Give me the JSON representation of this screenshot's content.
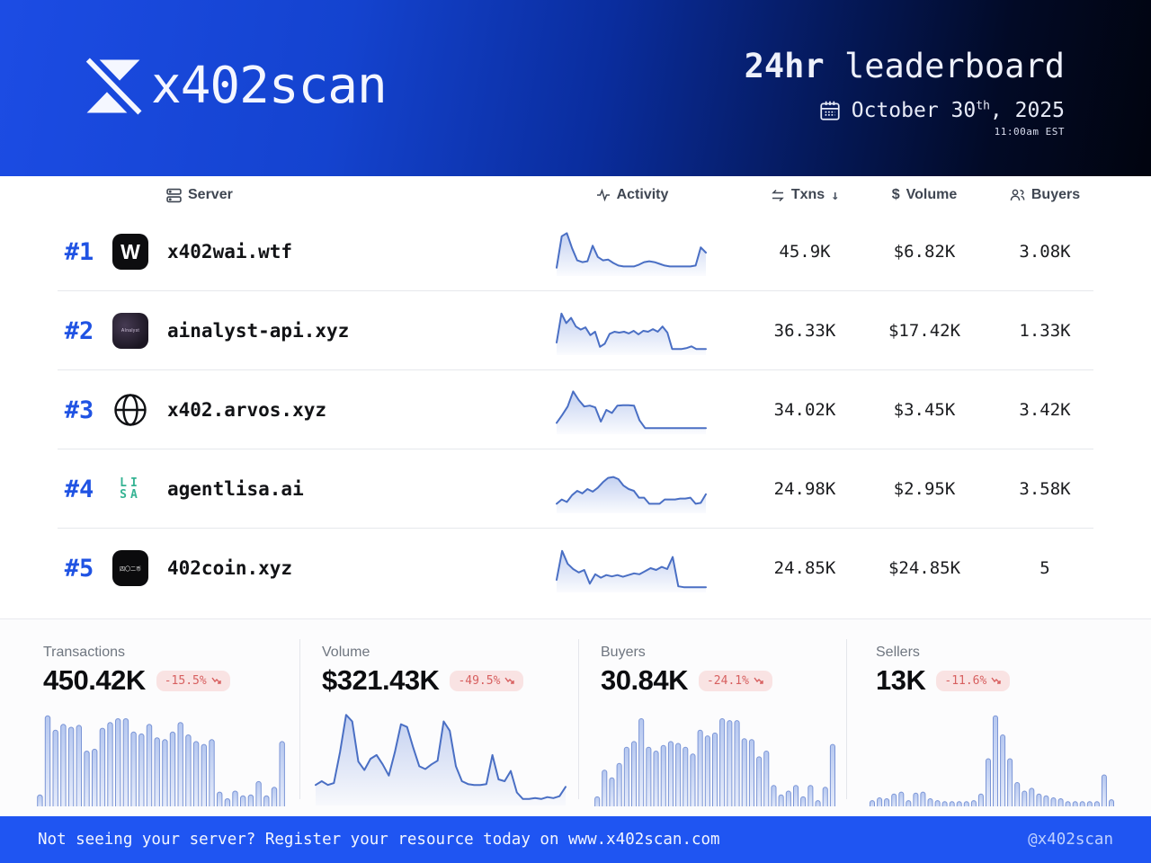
{
  "colors": {
    "accent_blue": "#2053e3",
    "header_gradient_left": "#1c4ce4",
    "header_gradient_right": "#01040f",
    "footer_bg": "#1f55f2",
    "spark_stroke": "#4a6fc4",
    "bar_stroke": "#7b95d6",
    "badge_bg": "#f9e3e3",
    "badge_text": "#d75f5f"
  },
  "icons": {
    "sort_desc": "↓",
    "dollar": "$"
  },
  "header": {
    "brand": "x402scan",
    "title_bold": "24hr",
    "title_regular": " leaderboard",
    "date_prefix": "October 30",
    "date_superscript": "th",
    "date_suffix": ", 2025",
    "time": "11:00am EST"
  },
  "table": {
    "headers": {
      "server": "Server",
      "activity": "Activity",
      "txns": "Txns",
      "volume": "Volume",
      "buyers": "Buyers"
    },
    "rows": [
      {
        "rank": "#1",
        "name": "x402wai.wtf",
        "icon_text": "W",
        "txns": "45.9K",
        "volume": "$6.82K",
        "buyers": "3.08K",
        "sparkline": [
          0.15,
          0.88,
          0.95,
          0.6,
          0.32,
          0.28,
          0.3,
          0.66,
          0.4,
          0.32,
          0.34,
          0.26,
          0.2,
          0.18,
          0.18,
          0.18,
          0.22,
          0.28,
          0.3,
          0.28,
          0.24,
          0.2,
          0.18,
          0.18,
          0.18,
          0.18,
          0.18,
          0.2,
          0.62,
          0.5
        ]
      },
      {
        "rank": "#2",
        "name": "ainalyst-api.xyz",
        "icon_text": "AInalyst",
        "txns": "36.33K",
        "volume": "$17.42K",
        "buyers": "1.33K",
        "sparkline": [
          0.25,
          0.92,
          0.7,
          0.82,
          0.62,
          0.55,
          0.6,
          0.42,
          0.5,
          0.15,
          0.22,
          0.45,
          0.5,
          0.48,
          0.5,
          0.46,
          0.52,
          0.44,
          0.52,
          0.5,
          0.56,
          0.5,
          0.62,
          0.48,
          0.1,
          0.1,
          0.1,
          0.12,
          0.16,
          0.1,
          0.1,
          0.1
        ]
      },
      {
        "rank": "#3",
        "name": "x402.arvos.xyz",
        "icon_text": "",
        "txns": "34.02K",
        "volume": "$3.45K",
        "buyers": "3.42K",
        "sparkline": [
          0.22,
          0.4,
          0.6,
          0.95,
          0.75,
          0.6,
          0.62,
          0.58,
          0.25,
          0.52,
          0.45,
          0.62,
          0.63,
          0.63,
          0.62,
          0.28,
          0.1,
          0.1,
          0.1,
          0.1,
          0.1,
          0.1,
          0.1,
          0.1,
          0.1,
          0.1,
          0.1,
          0.1
        ]
      },
      {
        "rank": "#4",
        "name": "agentlisa.ai",
        "icon_line1": "LI",
        "icon_line2": "SA",
        "txns": "24.98K",
        "volume": "$2.95K",
        "buyers": "3.58K",
        "sparkline": [
          0.18,
          0.28,
          0.22,
          0.38,
          0.48,
          0.42,
          0.52,
          0.46,
          0.55,
          0.68,
          0.78,
          0.8,
          0.75,
          0.6,
          0.52,
          0.48,
          0.32,
          0.32,
          0.18,
          0.18,
          0.18,
          0.28,
          0.28,
          0.28,
          0.3,
          0.3,
          0.32,
          0.18,
          0.2,
          0.4
        ]
      },
      {
        "rank": "#5",
        "name": "402coin.xyz",
        "icon_text": "四〇二币",
        "txns": "24.85K",
        "volume": "$24.85K",
        "buyers": "5",
        "sparkline": [
          0.25,
          0.92,
          0.62,
          0.5,
          0.42,
          0.48,
          0.16,
          0.38,
          0.3,
          0.36,
          0.33,
          0.36,
          0.32,
          0.36,
          0.4,
          0.38,
          0.45,
          0.52,
          0.48,
          0.55,
          0.5,
          0.78,
          0.1,
          0.08,
          0.08,
          0.08,
          0.08,
          0.08
        ]
      }
    ]
  },
  "stats": [
    {
      "label": "Transactions",
      "value": "450.42K",
      "change": "-15.5%",
      "values": [
        0.12,
        0.95,
        0.8,
        0.86,
        0.83,
        0.85,
        0.58,
        0.6,
        0.82,
        0.88,
        0.92,
        0.92,
        0.78,
        0.76,
        0.86,
        0.72,
        0.7,
        0.78,
        0.88,
        0.75,
        0.68,
        0.65,
        0.7,
        0.15,
        0.08,
        0.16,
        0.11,
        0.12,
        0.26,
        0.11,
        0.2,
        0.68
      ]
    },
    {
      "label": "Volume",
      "value": "$321.43K",
      "change": "-49.5%",
      "values": [
        0.2,
        0.24,
        0.2,
        0.22,
        0.55,
        0.95,
        0.88,
        0.45,
        0.36,
        0.48,
        0.52,
        0.42,
        0.3,
        0.55,
        0.85,
        0.82,
        0.6,
        0.4,
        0.37,
        0.42,
        0.46,
        0.88,
        0.78,
        0.4,
        0.24,
        0.21,
        0.2,
        0.2,
        0.21,
        0.52,
        0.26,
        0.24,
        0.35,
        0.12,
        0.05,
        0.05,
        0.06,
        0.05,
        0.07,
        0.06,
        0.08,
        0.18
      ]
    },
    {
      "label": "Buyers",
      "value": "30.84K",
      "change": "-24.1%",
      "values": [
        0.1,
        0.38,
        0.3,
        0.45,
        0.62,
        0.68,
        0.92,
        0.62,
        0.58,
        0.64,
        0.68,
        0.66,
        0.62,
        0.55,
        0.8,
        0.74,
        0.77,
        0.92,
        0.9,
        0.9,
        0.71,
        0.7,
        0.52,
        0.58,
        0.22,
        0.12,
        0.16,
        0.22,
        0.1,
        0.22,
        0.06,
        0.2,
        0.65
      ]
    },
    {
      "label": "Sellers",
      "value": "13K",
      "change": "-11.6%",
      "values": [
        0.06,
        0.09,
        0.08,
        0.13,
        0.15,
        0.06,
        0.14,
        0.15,
        0.08,
        0.06,
        0.05,
        0.05,
        0.05,
        0.05,
        0.06,
        0.13,
        0.5,
        0.95,
        0.75,
        0.5,
        0.25,
        0.16,
        0.19,
        0.13,
        0.11,
        0.09,
        0.08,
        0.05,
        0.05,
        0.05,
        0.05,
        0.05,
        0.33,
        0.07
      ]
    }
  ],
  "footer": {
    "message": "Not seeing your server? Register your resource today on www.x402scan.com",
    "handle": "@x402scan"
  }
}
